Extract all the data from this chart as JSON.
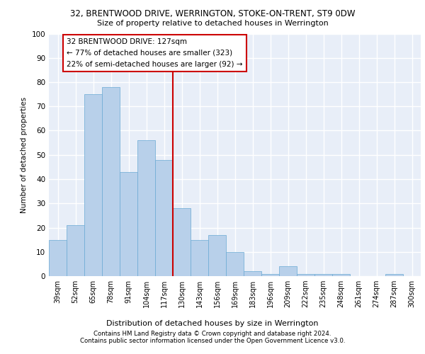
{
  "title1": "32, BRENTWOOD DRIVE, WERRINGTON, STOKE-ON-TRENT, ST9 0DW",
  "title2": "Size of property relative to detached houses in Werrington",
  "xlabel": "Distribution of detached houses by size in Werrington",
  "ylabel": "Number of detached properties",
  "categories": [
    "39sqm",
    "52sqm",
    "65sqm",
    "78sqm",
    "91sqm",
    "104sqm",
    "117sqm",
    "130sqm",
    "143sqm",
    "156sqm",
    "169sqm",
    "183sqm",
    "196sqm",
    "209sqm",
    "222sqm",
    "235sqm",
    "248sqm",
    "261sqm",
    "274sqm",
    "287sqm",
    "300sqm"
  ],
  "values": [
    15,
    21,
    75,
    78,
    43,
    56,
    48,
    28,
    15,
    17,
    10,
    2,
    1,
    4,
    1,
    1,
    1,
    0,
    0,
    1,
    0
  ],
  "bar_color": "#b8d0ea",
  "bar_edge_color": "#6aaad4",
  "background_color": "#e8eef8",
  "grid_color": "#ffffff",
  "annotation_box_text": "32 BRENTWOOD DRIVE: 127sqm\n← 77% of detached houses are smaller (323)\n22% of semi-detached houses are larger (92) →",
  "annotation_box_color": "#ffffff",
  "annotation_box_edge_color": "#cc0000",
  "vline_x_index": 7,
  "vline_color": "#cc0000",
  "footer1": "Contains HM Land Registry data © Crown copyright and database right 2024.",
  "footer2": "Contains public sector information licensed under the Open Government Licence v3.0.",
  "ylim": [
    0,
    100
  ],
  "yticks": [
    0,
    10,
    20,
    30,
    40,
    50,
    60,
    70,
    80,
    90,
    100
  ]
}
